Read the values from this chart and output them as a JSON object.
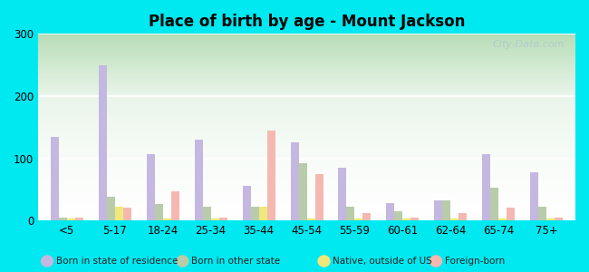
{
  "title": "Place of birth by age - Mount Jackson",
  "categories": [
    "<5",
    "5-17",
    "18-24",
    "25-34",
    "35-44",
    "45-54",
    "55-59",
    "60-61",
    "62-64",
    "65-74",
    "75+"
  ],
  "series": {
    "Born in state of residence": [
      135,
      250,
      107,
      130,
      55,
      125,
      85,
      28,
      33,
      107,
      78
    ],
    "Born in other state": [
      5,
      38,
      27,
      22,
      22,
      92,
      22,
      15,
      32,
      53,
      22
    ],
    "Native, outside of US": [
      3,
      22,
      3,
      3,
      22,
      3,
      3,
      3,
      3,
      3,
      3
    ],
    "Foreign-born": [
      5,
      20,
      47,
      5,
      145,
      75,
      12,
      5,
      12,
      20,
      5
    ]
  },
  "colors": {
    "Born in state of residence": "#c4b8e0",
    "Born in other state": "#b8ccaa",
    "Native, outside of US": "#f0e87a",
    "Foreign-born": "#f5b8b0"
  },
  "ylim": [
    0,
    300
  ],
  "yticks": [
    0,
    100,
    200,
    300
  ],
  "fig_bg": "#00e8f0",
  "grid_color": "#ffffff",
  "watermark": "City-Data.com",
  "bar_width": 0.17,
  "gradient_top": "#f5faf5",
  "gradient_bottom": "#c8e8c8"
}
